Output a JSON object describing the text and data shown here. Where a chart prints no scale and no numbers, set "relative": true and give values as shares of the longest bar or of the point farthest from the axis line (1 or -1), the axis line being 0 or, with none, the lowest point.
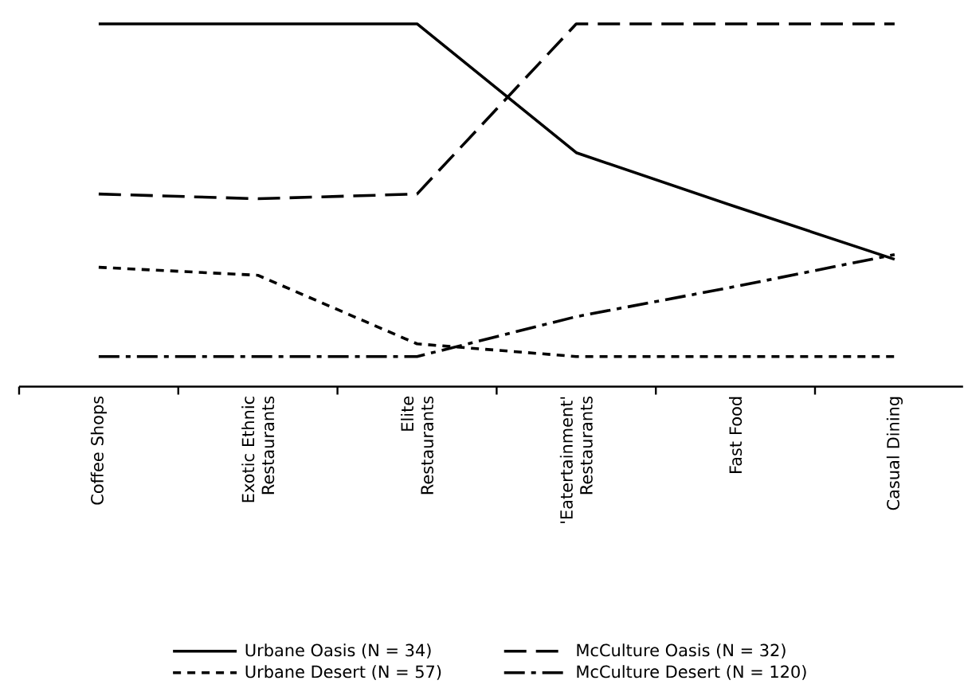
{
  "chart_data": {
    "type": "line",
    "relative": true,
    "legend": "bottom",
    "categories": [
      "Coffee Shops",
      "Exotic Ethnic Restaurants",
      "Elite Restaurants",
      "'Eatertainment' Restaurants",
      "Fast Food",
      "Casual Dining"
    ],
    "series": [
      {
        "name": "Urbane Oasis (N = 34)",
        "color": "#000000",
        "line_style": "solid",
        "values": [
          1,
          1,
          1,
          0.645,
          0.496,
          0.351
        ]
      },
      {
        "name": "McCulture Oasis (N = 32)",
        "color": "#000000",
        "line_style": "dashed",
        "values": [
          0.531,
          0.518,
          0.531,
          1,
          1,
          1
        ]
      },
      {
        "name": "Urbane Desert (N = 57)",
        "color": "#000000",
        "line_style": "dotted",
        "values": [
          0.329,
          0.307,
          0.118,
          0.083,
          0.083,
          0.083
        ]
      },
      {
        "name": "McCulture Desert (N = 120)",
        "color": "#000000",
        "line_style": "dashdot",
        "values": [
          0.083,
          0.083,
          0.083,
          0.193,
          0.276,
          0.364
        ]
      }
    ]
  }
}
